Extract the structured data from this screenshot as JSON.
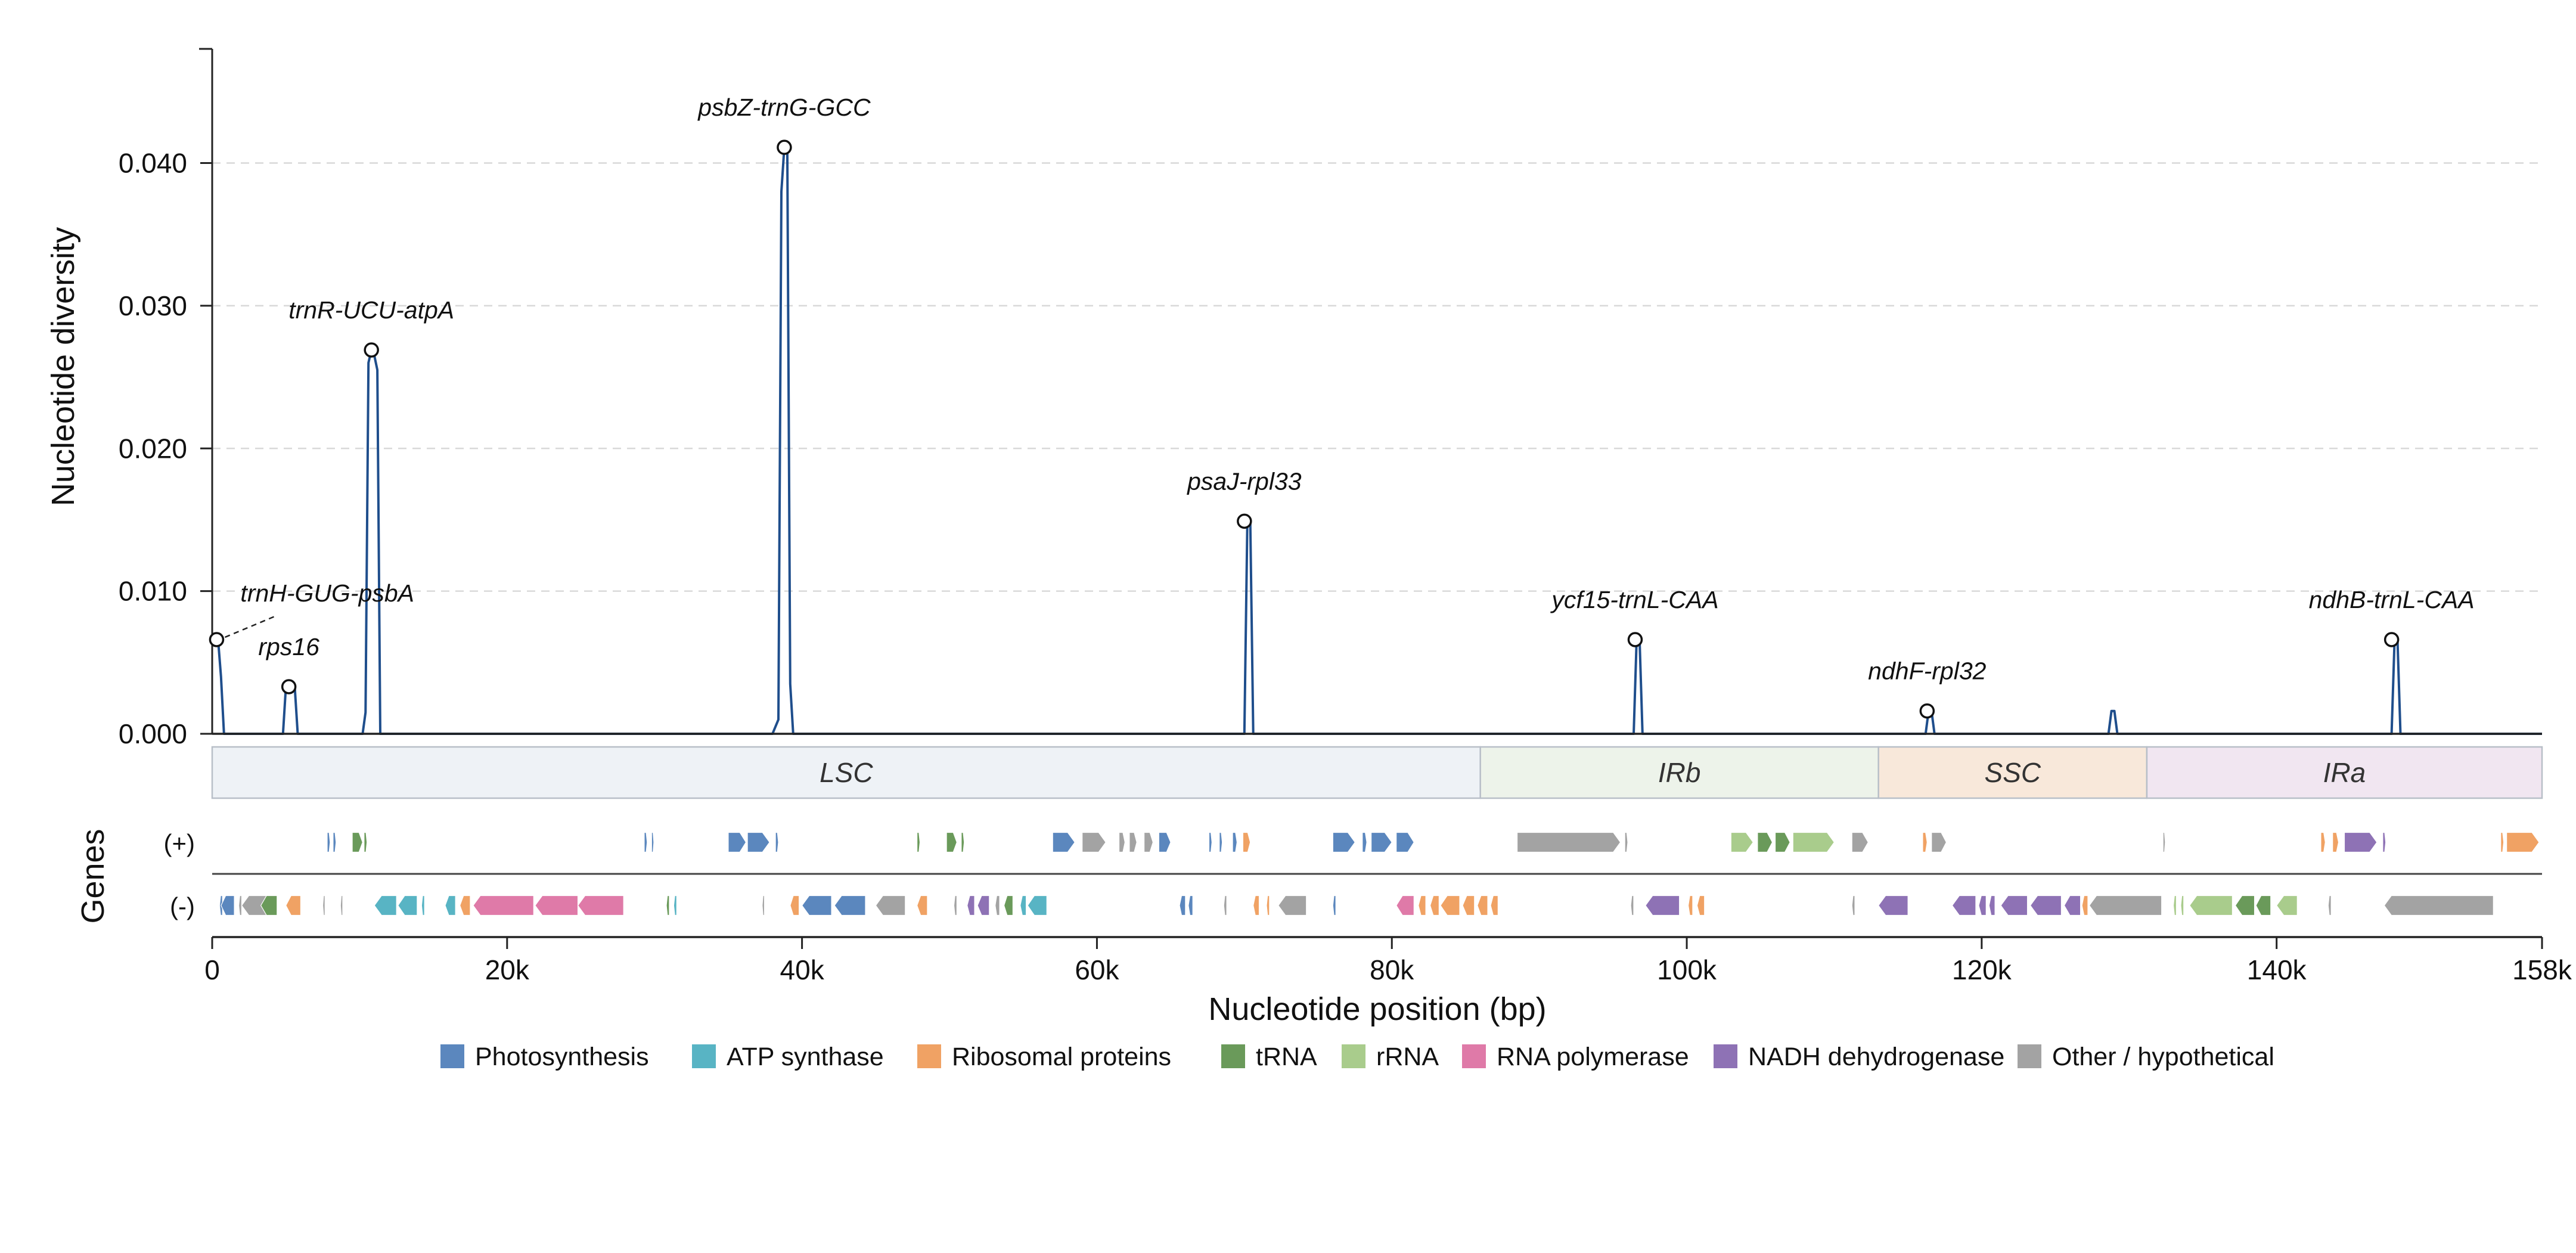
{
  "chart_data": {
    "type": "line",
    "ylabel": "Nucleotide diversity",
    "xlabel": "Nucleotide position (bp)",
    "xlim": [
      0,
      158000
    ],
    "ylim": [
      0,
      0.048
    ],
    "y_ticks": [
      {
        "value": 0.0,
        "label": "0.000"
      },
      {
        "value": 0.01,
        "label": "0.010"
      },
      {
        "value": 0.02,
        "label": "0.020"
      },
      {
        "value": 0.03,
        "label": "0.030"
      },
      {
        "value": 0.04,
        "label": "0.040"
      }
    ],
    "x_ticks": [
      {
        "value": 0,
        "label": "0"
      },
      {
        "value": 20000,
        "label": "20k"
      },
      {
        "value": 40000,
        "label": "40k"
      },
      {
        "value": 60000,
        "label": "60k"
      },
      {
        "value": 80000,
        "label": "80k"
      },
      {
        "value": 100000,
        "label": "100k"
      },
      {
        "value": 120000,
        "label": "120k"
      },
      {
        "value": 140000,
        "label": "140k"
      },
      {
        "value": 158000,
        "label": "158k"
      }
    ],
    "grid": "horizontal dashed",
    "line_color": "#1f4e8c",
    "series": [
      {
        "x": [
          0,
          200,
          400,
          600,
          800,
          2000,
          4000,
          4800,
          5000,
          5400,
          5600,
          5800,
          10200,
          10400,
          10600,
          10800,
          11000,
          11200,
          11400,
          12000,
          38000,
          38400,
          38600,
          38800,
          39000,
          39200,
          39400,
          39800,
          69800,
          70000,
          70200,
          70400,
          70600,
          71000,
          96000,
          96400,
          96600,
          96800,
          97000,
          97400,
          115800,
          116200,
          116400,
          116600,
          116800,
          117200,
          128000,
          128600,
          128800,
          129000,
          129200,
          129500,
          147400,
          147800,
          148000,
          148200,
          148400,
          148800,
          158000
        ],
        "y": [
          0.0066,
          0.0066,
          0.0066,
          0.004,
          0,
          0,
          0,
          0,
          0.0033,
          0.0033,
          0.0033,
          0,
          0,
          0.0015,
          0.026,
          0.0269,
          0.0265,
          0.0255,
          0,
          0,
          0,
          0.001,
          0.038,
          0.0411,
          0.0411,
          0.0035,
          0,
          0,
          0,
          0,
          0.0149,
          0.0149,
          0,
          0,
          0,
          0,
          0.0066,
          0.0066,
          0,
          0,
          0,
          0,
          0.0016,
          0.0016,
          0,
          0,
          0,
          0,
          0.0016,
          0.0016,
          0,
          0,
          0,
          0,
          0.0066,
          0.0066,
          0,
          0,
          0
        ]
      }
    ],
    "peaks": [
      {
        "label": "trnH-GUG-psbA",
        "x": 300,
        "y": 0.0066,
        "leader": true
      },
      {
        "label": "rps16",
        "x": 5200,
        "y": 0.0033
      },
      {
        "label": "trnR-UCU-atpA",
        "x": 10800,
        "y": 0.0269
      },
      {
        "label": "psbZ-trnG-GCC",
        "x": 38800,
        "y": 0.0411
      },
      {
        "label": "psaJ-rpl33",
        "x": 70000,
        "y": 0.0149
      },
      {
        "label": "ycf15-trnL-CAA",
        "x": 96500,
        "y": 0.0066
      },
      {
        "label": "ndhF-rpl32",
        "x": 116300,
        "y": 0.0016
      },
      {
        "label": "ndhB-trnL-CAA",
        "x": 147800,
        "y": 0.0066
      }
    ],
    "regions": [
      {
        "label": "LSC",
        "start": 0,
        "end": 86000,
        "color": "#eef2f6"
      },
      {
        "label": "IRb",
        "start": 86000,
        "end": 113000,
        "color": "#edf3ea"
      },
      {
        "label": "SSC",
        "start": 113000,
        "end": 131200,
        "color": "#f8e8da"
      },
      {
        "label": "IRa",
        "start": 131200,
        "end": 158000,
        "color": "#f1e6f1"
      }
    ],
    "gene_track": {
      "title": "Genes",
      "strands": [
        "(+)",
        "(-)"
      ],
      "plus": [
        {
          "s": 7800,
          "e": 8000,
          "c": "photo"
        },
        {
          "s": 8200,
          "e": 8400,
          "c": "photo"
        },
        {
          "s": 9500,
          "e": 10200,
          "c": "trna"
        },
        {
          "s": 10300,
          "e": 10500,
          "c": "trna"
        },
        {
          "s": 29300,
          "e": 29500,
          "c": "photo"
        },
        {
          "s": 29800,
          "e": 29950,
          "c": "photo"
        },
        {
          "s": 35000,
          "e": 36200,
          "c": "photo"
        },
        {
          "s": 36300,
          "e": 37800,
          "c": "photo"
        },
        {
          "s": 38200,
          "e": 38400,
          "c": "photo"
        },
        {
          "s": 47800,
          "e": 48000,
          "c": "trna"
        },
        {
          "s": 49800,
          "e": 50500,
          "c": "trna"
        },
        {
          "s": 50800,
          "e": 51000,
          "c": "trna"
        },
        {
          "s": 57000,
          "e": 58500,
          "c": "photo"
        },
        {
          "s": 59000,
          "e": 60600,
          "c": "other"
        },
        {
          "s": 61500,
          "e": 61900,
          "c": "other"
        },
        {
          "s": 62200,
          "e": 62700,
          "c": "other"
        },
        {
          "s": 63200,
          "e": 63800,
          "c": "other"
        },
        {
          "s": 64200,
          "e": 65000,
          "c": "photo"
        },
        {
          "s": 67600,
          "e": 67800,
          "c": "photo"
        },
        {
          "s": 68300,
          "e": 68500,
          "c": "photo"
        },
        {
          "s": 69200,
          "e": 69500,
          "c": "photo"
        },
        {
          "s": 69900,
          "e": 70400,
          "c": "ribo"
        },
        {
          "s": 76000,
          "e": 77500,
          "c": "photo"
        },
        {
          "s": 78000,
          "e": 78300,
          "c": "photo"
        },
        {
          "s": 78600,
          "e": 80000,
          "c": "photo"
        },
        {
          "s": 80300,
          "e": 81500,
          "c": "photo"
        },
        {
          "s": 88500,
          "e": 95500,
          "c": "other"
        },
        {
          "s": 95800,
          "e": 96000,
          "c": "other"
        },
        {
          "s": 103000,
          "e": 104500,
          "c": "rrna"
        },
        {
          "s": 104800,
          "e": 105800,
          "c": "trna"
        },
        {
          "s": 106000,
          "e": 107000,
          "c": "trna"
        },
        {
          "s": 107200,
          "e": 110000,
          "c": "rrna"
        },
        {
          "s": 111200,
          "e": 112300,
          "c": "other"
        },
        {
          "s": 116000,
          "e": 116300,
          "c": "ribo"
        },
        {
          "s": 116600,
          "e": 117600,
          "c": "other"
        },
        {
          "s": 132300,
          "e": 132450,
          "c": "other"
        },
        {
          "s": 143000,
          "e": 143300,
          "c": "ribo"
        },
        {
          "s": 143800,
          "e": 144200,
          "c": "ribo"
        },
        {
          "s": 144600,
          "e": 146800,
          "c": "nadh"
        },
        {
          "s": 147200,
          "e": 147400,
          "c": "nadh"
        },
        {
          "s": 155200,
          "e": 155400,
          "c": "ribo"
        },
        {
          "s": 155600,
          "e": 157800,
          "c": "ribo"
        }
      ],
      "minus": [
        {
          "s": 500,
          "e": 700,
          "c": "photo"
        },
        {
          "s": 600,
          "e": 1500,
          "c": "photo"
        },
        {
          "s": 1800,
          "e": 2000,
          "c": "other"
        },
        {
          "s": 2000,
          "e": 4400,
          "c": "other"
        },
        {
          "s": 3300,
          "e": 4400,
          "c": "trna"
        },
        {
          "s": 5000,
          "e": 6000,
          "c": "ribo"
        },
        {
          "s": 7500,
          "e": 7650,
          "c": "other"
        },
        {
          "s": 8700,
          "e": 8850,
          "c": "other"
        },
        {
          "s": 11000,
          "e": 12500,
          "c": "atp"
        },
        {
          "s": 12600,
          "e": 13900,
          "c": "atp"
        },
        {
          "s": 14200,
          "e": 14400,
          "c": "atp"
        },
        {
          "s": 15800,
          "e": 16500,
          "c": "atp"
        },
        {
          "s": 16800,
          "e": 17500,
          "c": "ribo"
        },
        {
          "s": 17700,
          "e": 21800,
          "c": "rnap"
        },
        {
          "s": 21900,
          "e": 24800,
          "c": "rnap"
        },
        {
          "s": 24800,
          "e": 27900,
          "c": "rnap"
        },
        {
          "s": 30800,
          "e": 31000,
          "c": "trna"
        },
        {
          "s": 31300,
          "e": 31500,
          "c": "atp"
        },
        {
          "s": 37300,
          "e": 37450,
          "c": "other"
        },
        {
          "s": 39200,
          "e": 39800,
          "c": "ribo"
        },
        {
          "s": 40000,
          "e": 42000,
          "c": "photo"
        },
        {
          "s": 42200,
          "e": 44300,
          "c": "photo"
        },
        {
          "s": 45000,
          "e": 47000,
          "c": "other"
        },
        {
          "s": 47800,
          "e": 48500,
          "c": "ribo"
        },
        {
          "s": 50300,
          "e": 50500,
          "c": "other"
        },
        {
          "s": 51200,
          "e": 51700,
          "c": "nadh"
        },
        {
          "s": 51900,
          "e": 52700,
          "c": "nadh"
        },
        {
          "s": 53100,
          "e": 53400,
          "c": "other"
        },
        {
          "s": 53700,
          "e": 54300,
          "c": "trna"
        },
        {
          "s": 54800,
          "e": 55200,
          "c": "atp"
        },
        {
          "s": 55300,
          "e": 56600,
          "c": "atp"
        },
        {
          "s": 65600,
          "e": 66000,
          "c": "photo"
        },
        {
          "s": 66200,
          "e": 66500,
          "c": "photo"
        },
        {
          "s": 68600,
          "e": 68800,
          "c": "other"
        },
        {
          "s": 70600,
          "e": 71000,
          "c": "ribo"
        },
        {
          "s": 71500,
          "e": 71700,
          "c": "ribo"
        },
        {
          "s": 72300,
          "e": 74200,
          "c": "other"
        },
        {
          "s": 76000,
          "e": 76200,
          "c": "photo"
        },
        {
          "s": 80300,
          "e": 81500,
          "c": "rnap"
        },
        {
          "s": 81800,
          "e": 82300,
          "c": "ribo"
        },
        {
          "s": 82600,
          "e": 83200,
          "c": "ribo"
        },
        {
          "s": 83300,
          "e": 84600,
          "c": "ribo"
        },
        {
          "s": 84800,
          "e": 85600,
          "c": "ribo"
        },
        {
          "s": 85800,
          "e": 86500,
          "c": "ribo"
        },
        {
          "s": 86700,
          "e": 87200,
          "c": "ribo"
        },
        {
          "s": 96200,
          "e": 96400,
          "c": "other"
        },
        {
          "s": 97200,
          "e": 99500,
          "c": "nadh"
        },
        {
          "s": 100100,
          "e": 100400,
          "c": "ribo"
        },
        {
          "s": 100700,
          "e": 101200,
          "c": "ribo"
        },
        {
          "s": 111200,
          "e": 111400,
          "c": "other"
        },
        {
          "s": 113000,
          "e": 115000,
          "c": "nadh"
        },
        {
          "s": 118000,
          "e": 119600,
          "c": "nadh"
        },
        {
          "s": 119800,
          "e": 120300,
          "c": "nadh"
        },
        {
          "s": 120500,
          "e": 120900,
          "c": "nadh"
        },
        {
          "s": 121300,
          "e": 123100,
          "c": "nadh"
        },
        {
          "s": 123300,
          "e": 125400,
          "c": "nadh"
        },
        {
          "s": 125600,
          "e": 126700,
          "c": "nadh"
        },
        {
          "s": 126800,
          "e": 127200,
          "c": "ribo"
        },
        {
          "s": 127300,
          "e": 132200,
          "c": "other"
        },
        {
          "s": 133000,
          "e": 133200,
          "c": "rrna"
        },
        {
          "s": 133500,
          "e": 133700,
          "c": "rrna"
        },
        {
          "s": 134100,
          "e": 137000,
          "c": "rrna"
        },
        {
          "s": 137200,
          "e": 138500,
          "c": "trna"
        },
        {
          "s": 138600,
          "e": 139600,
          "c": "trna"
        },
        {
          "s": 140000,
          "e": 141400,
          "c": "rrna"
        },
        {
          "s": 143500,
          "e": 143700,
          "c": "other"
        },
        {
          "s": 147300,
          "e": 154700,
          "c": "other"
        }
      ]
    },
    "legend": [
      {
        "key": "photo",
        "label": "Photosynthesis",
        "color": "#5b87be"
      },
      {
        "key": "atp",
        "label": "ATP synthase",
        "color": "#58b4c4"
      },
      {
        "key": "ribo",
        "label": "Ribosomal proteins",
        "color": "#f0a264"
      },
      {
        "key": "trna",
        "label": "tRNA",
        "color": "#6a9a5a"
      },
      {
        "key": "rrna",
        "label": "rRNA",
        "color": "#a9cc8c"
      },
      {
        "key": "rnap",
        "label": "RNA polymerase",
        "color": "#df7aa8"
      },
      {
        "key": "nadh",
        "label": "NADH dehydrogenase",
        "color": "#8e72b5"
      },
      {
        "key": "other",
        "label": "Other / hypothetical",
        "color": "#a3a3a3"
      }
    ]
  }
}
